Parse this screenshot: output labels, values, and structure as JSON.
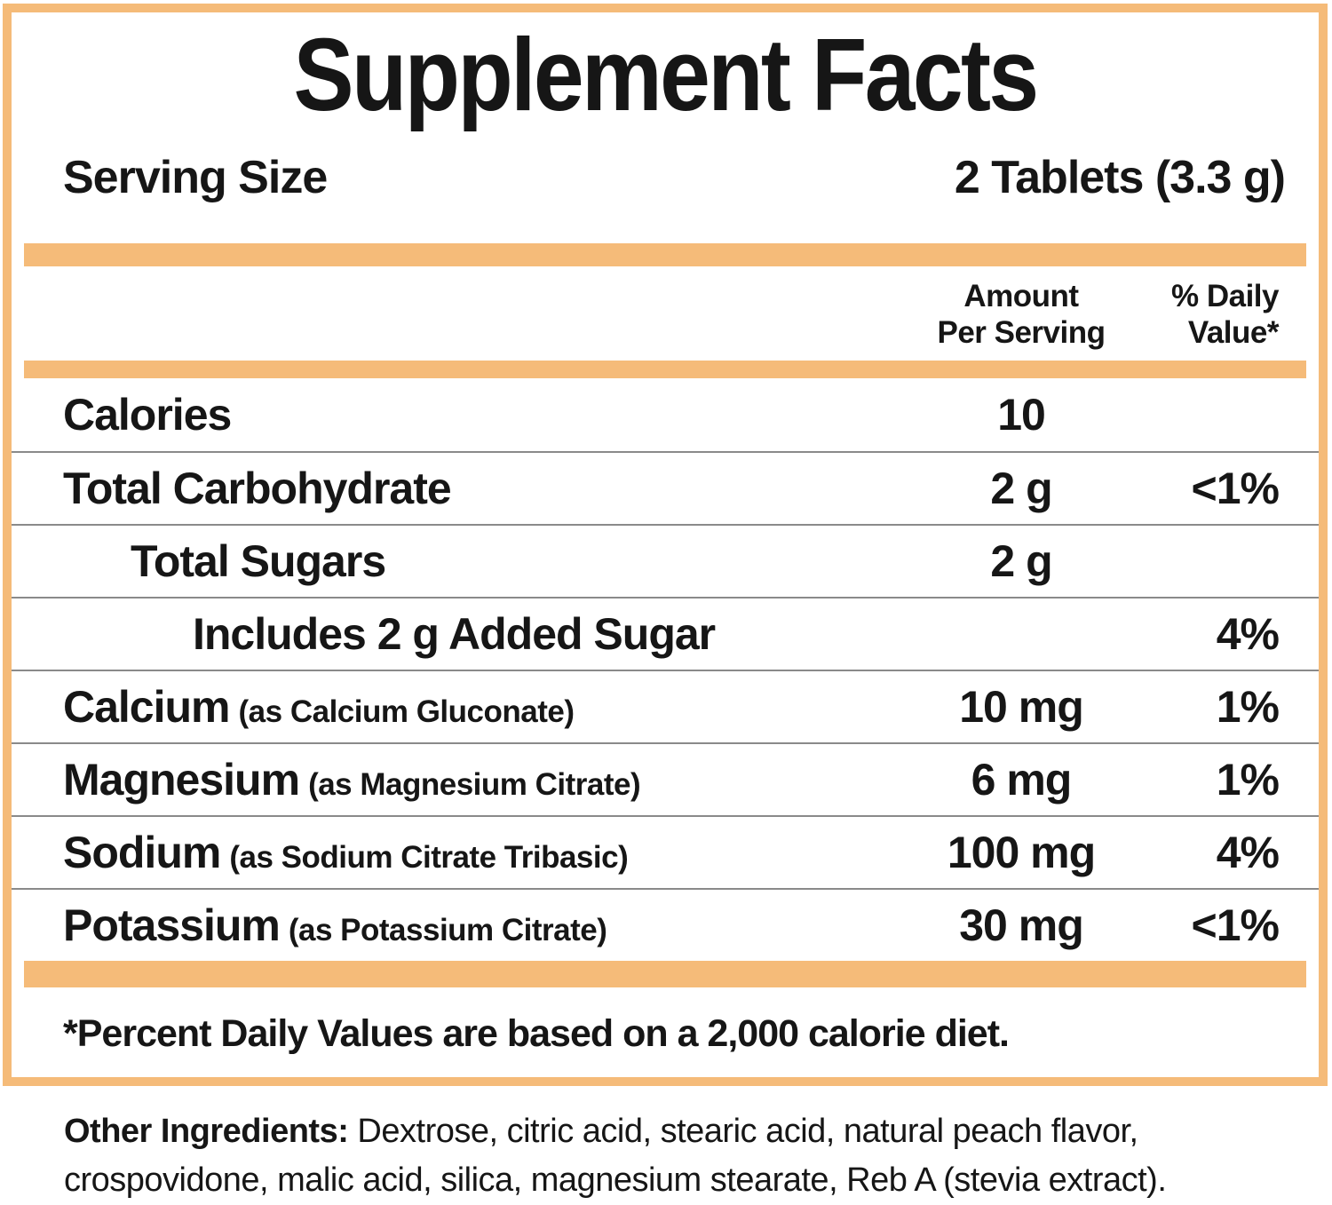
{
  "title": "Supplement Facts",
  "serving": {
    "label": "Serving Size",
    "value": "2 Tablets (3.3 g)"
  },
  "columns": {
    "amount_line1": "Amount",
    "amount_line2": "Per Serving",
    "dv_line1": "% Daily",
    "dv_line2": "Value*"
  },
  "rows": [
    {
      "name": "Calories",
      "detail": "",
      "amount": "10",
      "dv": "",
      "indent": 0
    },
    {
      "name": "Total Carbohydrate",
      "detail": "",
      "amount": "2 g",
      "dv": "<1%",
      "indent": 0
    },
    {
      "name": "Total Sugars",
      "detail": "",
      "amount": "2 g",
      "dv": "",
      "indent": 1
    },
    {
      "name": "Includes 2 g Added Sugar",
      "detail": "",
      "amount": "",
      "dv": "4%",
      "indent": 2
    },
    {
      "name": "Calcium",
      "detail": "(as Calcium Gluconate)",
      "amount": "10 mg",
      "dv": "1%",
      "indent": 0
    },
    {
      "name": "Magnesium",
      "detail": "(as Magnesium Citrate)",
      "amount": "6 mg",
      "dv": "1%",
      "indent": 0
    },
    {
      "name": "Sodium",
      "detail": "(as Sodium Citrate Tribasic)",
      "amount": "100 mg",
      "dv": "4%",
      "indent": 0
    },
    {
      "name": "Potassium",
      "detail": "(as Potassium Citrate)",
      "amount": "30 mg",
      "dv": "<1%",
      "indent": 0
    }
  ],
  "footnote": "*Percent Daily Values are based on a 2,000 calorie diet.",
  "other_ingredients": {
    "label": "Other Ingredients:",
    "text": " Dextrose, citric acid, stearic acid, natural peach flavor, crospovidone, malic acid, silica, magnesium stearate, Reb A (stevia extract)."
  },
  "colors": {
    "accent": "#F5BB79",
    "divider": "#8A8A8A",
    "text": "#161616"
  }
}
